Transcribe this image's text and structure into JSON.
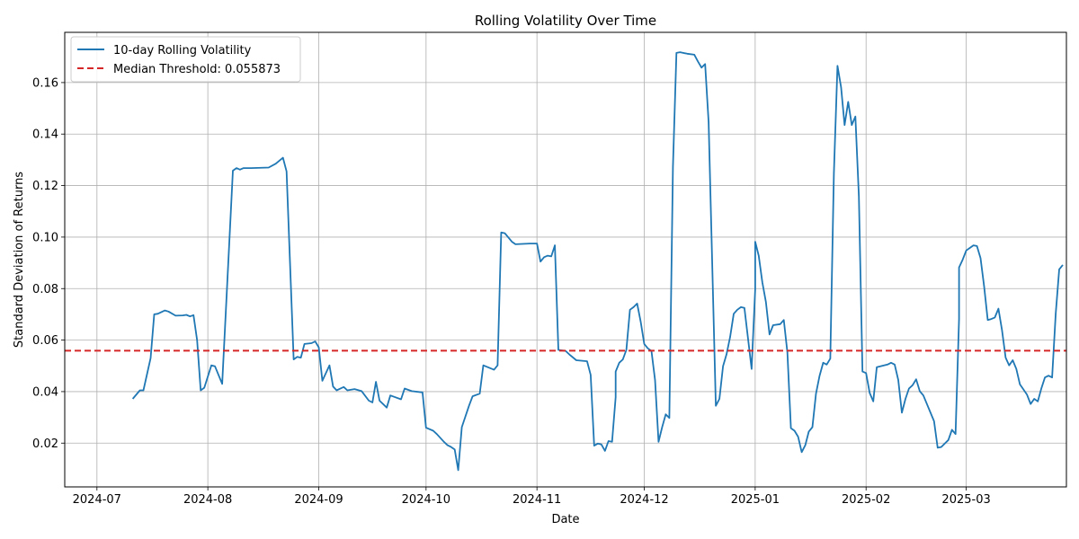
{
  "chart_data": {
    "type": "line",
    "title": "Rolling Volatility Over Time",
    "xlabel": "Date",
    "ylabel": "Standard Deviation of Returns",
    "x_range": [
      "2024-06-22",
      "2025-03-29"
    ],
    "ylim": [
      0.003,
      0.1795
    ],
    "grid": true,
    "legend_position": "top-left",
    "x_ticks": [
      {
        "date": "2024-07-01",
        "label": "2024-07"
      },
      {
        "date": "2024-08-01",
        "label": "2024-08"
      },
      {
        "date": "2024-09-01",
        "label": "2024-09"
      },
      {
        "date": "2024-10-01",
        "label": "2024-10"
      },
      {
        "date": "2024-11-01",
        "label": "2024-11"
      },
      {
        "date": "2024-12-01",
        "label": "2024-12"
      },
      {
        "date": "2025-01-01",
        "label": "2025-01"
      },
      {
        "date": "2025-02-01",
        "label": "2025-02"
      },
      {
        "date": "2025-03-01",
        "label": "2025-03"
      }
    ],
    "y_ticks": [
      {
        "value": 0.02,
        "label": "0.02"
      },
      {
        "value": 0.04,
        "label": "0.04"
      },
      {
        "value": 0.06,
        "label": "0.06"
      },
      {
        "value": 0.08,
        "label": "0.08"
      },
      {
        "value": 0.1,
        "label": "0.10"
      },
      {
        "value": 0.12,
        "label": "0.12"
      },
      {
        "value": 0.14,
        "label": "0.14"
      },
      {
        "value": 0.16,
        "label": "0.16"
      }
    ],
    "threshold": {
      "name": "Median Threshold: 0.055873",
      "value": 0.055873,
      "color": "#d62728"
    },
    "series": [
      {
        "name": "10-day Rolling Volatility",
        "color": "#1f77b4",
        "points": [
          [
            "2024-07-11",
            0.0372
          ],
          [
            "2024-07-13",
            0.0405
          ],
          [
            "2024-07-14",
            0.0405
          ],
          [
            "2024-07-16",
            0.053
          ],
          [
            "2024-07-17",
            0.07
          ],
          [
            "2024-07-18",
            0.0702
          ],
          [
            "2024-07-20",
            0.0715
          ],
          [
            "2024-07-21",
            0.0711
          ],
          [
            "2024-07-23",
            0.0695
          ],
          [
            "2024-07-25",
            0.0696
          ],
          [
            "2024-07-26",
            0.0698
          ],
          [
            "2024-07-27",
            0.0692
          ],
          [
            "2024-07-28",
            0.0697
          ],
          [
            "2024-07-29",
            0.06
          ],
          [
            "2024-07-30",
            0.0405
          ],
          [
            "2024-07-31",
            0.0415
          ],
          [
            "2024-08-02",
            0.0502
          ],
          [
            "2024-08-03",
            0.0498
          ],
          [
            "2024-08-05",
            0.043
          ],
          [
            "2024-08-07",
            0.0978
          ],
          [
            "2024-08-08",
            0.1258
          ],
          [
            "2024-08-09",
            0.1268
          ],
          [
            "2024-08-10",
            0.1262
          ],
          [
            "2024-08-11",
            0.1268
          ],
          [
            "2024-08-13",
            0.1268
          ],
          [
            "2024-08-18",
            0.127
          ],
          [
            "2024-08-20",
            0.1285
          ],
          [
            "2024-08-22",
            0.1308
          ],
          [
            "2024-08-23",
            0.1255
          ],
          [
            "2024-08-25",
            0.0525
          ],
          [
            "2024-08-26",
            0.0535
          ],
          [
            "2024-08-27",
            0.0532
          ],
          [
            "2024-08-28",
            0.0585
          ],
          [
            "2024-08-30",
            0.0588
          ],
          [
            "2024-08-31",
            0.0595
          ],
          [
            "2024-09-01",
            0.0572
          ],
          [
            "2024-09-02",
            0.0442
          ],
          [
            "2024-09-04",
            0.0502
          ],
          [
            "2024-09-05",
            0.042
          ],
          [
            "2024-09-06",
            0.0405
          ],
          [
            "2024-09-08",
            0.0418
          ],
          [
            "2024-09-09",
            0.0405
          ],
          [
            "2024-09-11",
            0.041
          ],
          [
            "2024-09-13",
            0.0402
          ],
          [
            "2024-09-15",
            0.0365
          ],
          [
            "2024-09-16",
            0.0358
          ],
          [
            "2024-09-17",
            0.0438
          ],
          [
            "2024-09-18",
            0.0365
          ],
          [
            "2024-09-20",
            0.0338
          ],
          [
            "2024-09-21",
            0.0385
          ],
          [
            "2024-09-24",
            0.037
          ],
          [
            "2024-09-25",
            0.0412
          ],
          [
            "2024-09-27",
            0.0402
          ],
          [
            "2024-09-30",
            0.0397
          ],
          [
            "2024-10-01",
            0.026
          ],
          [
            "2024-10-03",
            0.0248
          ],
          [
            "2024-10-04",
            0.0235
          ],
          [
            "2024-10-06",
            0.0205
          ],
          [
            "2024-10-07",
            0.0192
          ],
          [
            "2024-10-08",
            0.0185
          ],
          [
            "2024-10-09",
            0.0175
          ],
          [
            "2024-10-10",
            0.0095
          ],
          [
            "2024-10-11",
            0.0262
          ],
          [
            "2024-10-13",
            0.0345
          ],
          [
            "2024-10-14",
            0.0382
          ],
          [
            "2024-10-16",
            0.0392
          ],
          [
            "2024-10-17",
            0.0502
          ],
          [
            "2024-10-20",
            0.0485
          ],
          [
            "2024-10-21",
            0.0502
          ],
          [
            "2024-10-22",
            0.1018
          ],
          [
            "2024-10-23",
            0.1015
          ],
          [
            "2024-10-25",
            0.0982
          ],
          [
            "2024-10-26",
            0.0972
          ],
          [
            "2024-10-30",
            0.0975
          ],
          [
            "2024-11-01",
            0.0975
          ],
          [
            "2024-11-02",
            0.0905
          ],
          [
            "2024-11-03",
            0.0922
          ],
          [
            "2024-11-04",
            0.0928
          ],
          [
            "2024-11-05",
            0.0925
          ],
          [
            "2024-11-06",
            0.0968
          ],
          [
            "2024-11-07",
            0.0562
          ],
          [
            "2024-11-09",
            0.0558
          ],
          [
            "2024-11-10",
            0.0545
          ],
          [
            "2024-11-12",
            0.0522
          ],
          [
            "2024-11-15",
            0.0518
          ],
          [
            "2024-11-16",
            0.0465
          ],
          [
            "2024-11-17",
            0.019
          ],
          [
            "2024-11-18",
            0.0198
          ],
          [
            "2024-11-19",
            0.0195
          ],
          [
            "2024-11-20",
            0.017
          ],
          [
            "2024-11-21",
            0.0208
          ],
          [
            "2024-11-22",
            0.0205
          ],
          [
            "2024-11-23",
            0.0378
          ],
          [
            "2024-11-23",
            0.0478
          ],
          [
            "2024-11-24",
            0.0512
          ],
          [
            "2024-11-25",
            0.0525
          ],
          [
            "2024-11-26",
            0.0562
          ],
          [
            "2024-11-27",
            0.0718
          ],
          [
            "2024-11-28",
            0.0728
          ],
          [
            "2024-11-29",
            0.0742
          ],
          [
            "2024-11-30",
            0.0672
          ],
          [
            "2024-12-01",
            0.0585
          ],
          [
            "2024-12-02",
            0.0568
          ],
          [
            "2024-12-03",
            0.0558
          ],
          [
            "2024-12-04",
            0.0445
          ],
          [
            "2024-12-05",
            0.0205
          ],
          [
            "2024-12-06",
            0.0262
          ],
          [
            "2024-12-07",
            0.0312
          ],
          [
            "2024-12-08",
            0.0298
          ],
          [
            "2024-12-09",
            0.1272
          ],
          [
            "2024-12-10",
            0.1715
          ],
          [
            "2024-12-11",
            0.1718
          ],
          [
            "2024-12-13",
            0.1712
          ],
          [
            "2024-12-15",
            0.1708
          ],
          [
            "2024-12-16",
            0.1682
          ],
          [
            "2024-12-17",
            0.1658
          ],
          [
            "2024-12-18",
            0.1672
          ],
          [
            "2024-12-19",
            0.1445
          ],
          [
            "2024-12-21",
            0.0345
          ],
          [
            "2024-12-22",
            0.0372
          ],
          [
            "2024-12-23",
            0.0498
          ],
          [
            "2024-12-24",
            0.0545
          ],
          [
            "2024-12-25",
            0.0612
          ],
          [
            "2024-12-26",
            0.0702
          ],
          [
            "2024-12-27",
            0.0718
          ],
          [
            "2024-12-28",
            0.0728
          ],
          [
            "2024-12-29",
            0.0725
          ],
          [
            "2024-12-31",
            0.0488
          ],
          [
            "2025-01-01",
            0.0798
          ],
          [
            "2025-01-01",
            0.0982
          ],
          [
            "2025-01-02",
            0.0928
          ],
          [
            "2025-01-03",
            0.0825
          ],
          [
            "2025-01-04",
            0.0748
          ],
          [
            "2025-01-05",
            0.0622
          ],
          [
            "2025-01-06",
            0.0658
          ],
          [
            "2025-01-08",
            0.0662
          ],
          [
            "2025-01-09",
            0.0678
          ],
          [
            "2025-01-10",
            0.0552
          ],
          [
            "2025-01-11",
            0.0258
          ],
          [
            "2025-01-12",
            0.0248
          ],
          [
            "2025-01-13",
            0.0225
          ],
          [
            "2025-01-14",
            0.0165
          ],
          [
            "2025-01-15",
            0.0192
          ],
          [
            "2025-01-16",
            0.0245
          ],
          [
            "2025-01-17",
            0.0262
          ],
          [
            "2025-01-18",
            0.0392
          ],
          [
            "2025-01-19",
            0.0462
          ],
          [
            "2025-01-20",
            0.0512
          ],
          [
            "2025-01-21",
            0.0505
          ],
          [
            "2025-01-22",
            0.0528
          ],
          [
            "2025-01-23",
            0.1248
          ],
          [
            "2025-01-24",
            0.1665
          ],
          [
            "2025-01-25",
            0.1582
          ],
          [
            "2025-01-26",
            0.1435
          ],
          [
            "2025-01-27",
            0.1525
          ],
          [
            "2025-01-28",
            0.1435
          ],
          [
            "2025-01-29",
            0.1468
          ],
          [
            "2025-01-30",
            0.1158
          ],
          [
            "2025-01-31",
            0.0478
          ],
          [
            "2025-02-01",
            0.0472
          ],
          [
            "2025-02-02",
            0.0395
          ],
          [
            "2025-02-03",
            0.0362
          ],
          [
            "2025-02-04",
            0.0495
          ],
          [
            "2025-02-05",
            0.0498
          ],
          [
            "2025-02-07",
            0.0505
          ],
          [
            "2025-02-08",
            0.0512
          ],
          [
            "2025-02-09",
            0.0505
          ],
          [
            "2025-02-10",
            0.0445
          ],
          [
            "2025-02-11",
            0.0318
          ],
          [
            "2025-02-12",
            0.0372
          ],
          [
            "2025-02-13",
            0.0412
          ],
          [
            "2025-02-14",
            0.0425
          ],
          [
            "2025-02-15",
            0.0448
          ],
          [
            "2025-02-16",
            0.0402
          ],
          [
            "2025-02-17",
            0.0385
          ],
          [
            "2025-02-20",
            0.0285
          ],
          [
            "2025-02-21",
            0.0182
          ],
          [
            "2025-02-22",
            0.0185
          ],
          [
            "2025-02-24",
            0.0212
          ],
          [
            "2025-02-25",
            0.0252
          ],
          [
            "2025-02-26",
            0.0235
          ],
          [
            "2025-02-27",
            0.0682
          ],
          [
            "2025-02-27",
            0.0882
          ],
          [
            "2025-02-28",
            0.0912
          ],
          [
            "2025-03-01",
            0.0948
          ],
          [
            "2025-03-02",
            0.0958
          ],
          [
            "2025-03-03",
            0.0968
          ],
          [
            "2025-03-04",
            0.0965
          ],
          [
            "2025-03-05",
            0.0918
          ],
          [
            "2025-03-06",
            0.0808
          ],
          [
            "2025-03-07",
            0.0678
          ],
          [
            "2025-03-08",
            0.0682
          ],
          [
            "2025-03-09",
            0.0688
          ],
          [
            "2025-03-10",
            0.0722
          ],
          [
            "2025-03-11",
            0.0638
          ],
          [
            "2025-03-12",
            0.0532
          ],
          [
            "2025-03-13",
            0.0502
          ],
          [
            "2025-03-14",
            0.0522
          ],
          [
            "2025-03-15",
            0.0488
          ],
          [
            "2025-03-16",
            0.0428
          ],
          [
            "2025-03-17",
            0.0408
          ],
          [
            "2025-03-18",
            0.0388
          ],
          [
            "2025-03-19",
            0.0352
          ],
          [
            "2025-03-20",
            0.0372
          ],
          [
            "2025-03-21",
            0.0362
          ],
          [
            "2025-03-22",
            0.0412
          ],
          [
            "2025-03-23",
            0.0455
          ],
          [
            "2025-03-24",
            0.0462
          ],
          [
            "2025-03-25",
            0.0455
          ],
          [
            "2025-03-26",
            0.0702
          ],
          [
            "2025-03-27",
            0.0875
          ],
          [
            "2025-03-28",
            0.0892
          ]
        ]
      }
    ]
  }
}
